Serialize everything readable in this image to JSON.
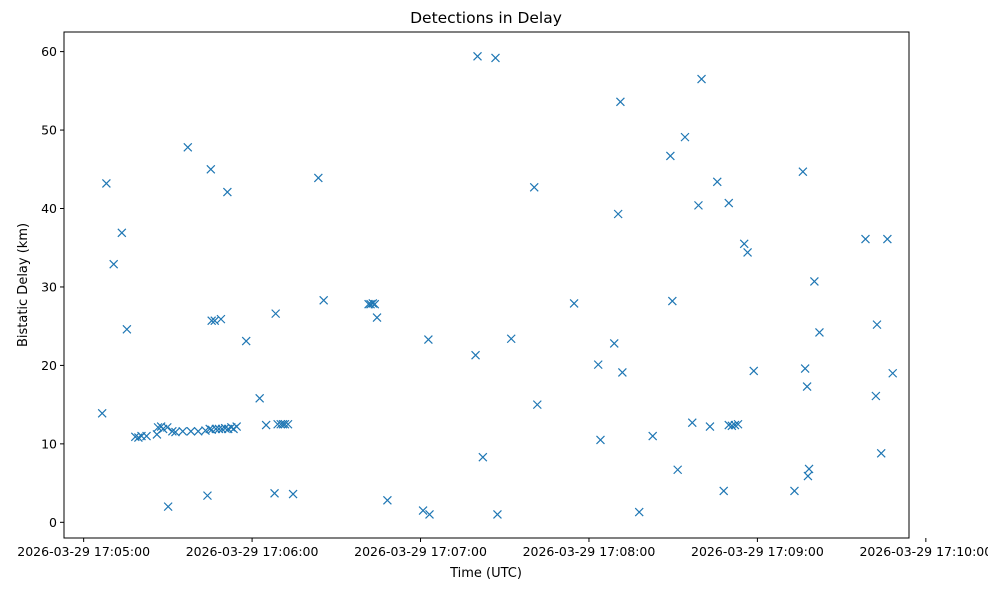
{
  "chart_data": {
    "type": "scatter",
    "title": "Detections in Delay",
    "xlabel": "Time (UTC)",
    "ylabel": "Bistatic Delay (km)",
    "marker": "x",
    "color": "#1f77b4",
    "grid": false,
    "x_unit": "seconds since 2026-03-29 17:05:00 UTC",
    "xlim": [
      -7,
      294
    ],
    "ylim": [
      -2,
      62.5
    ],
    "x_ticks": [
      {
        "value": 0,
        "label": "2026-03-29 17:05:00"
      },
      {
        "value": 60,
        "label": "2026-03-29 17:06:00"
      },
      {
        "value": 120,
        "label": "2026-03-29 17:07:00"
      },
      {
        "value": 180,
        "label": "2026-03-29 17:08:00"
      },
      {
        "value": 240,
        "label": "2026-03-29 17:09:00"
      },
      {
        "value": 300,
        "label": "2026-03-29 17:10:00"
      }
    ],
    "y_ticks": [
      {
        "value": 0,
        "label": "0"
      },
      {
        "value": 10,
        "label": "10"
      },
      {
        "value": 20,
        "label": "20"
      },
      {
        "value": 30,
        "label": "30"
      },
      {
        "value": 40,
        "label": "40"
      },
      {
        "value": 50,
        "label": "50"
      },
      {
        "value": 60,
        "label": "60"
      }
    ],
    "points": [
      {
        "x": 6.6,
        "y": 13.9
      },
      {
        "x": 8.1,
        "y": 43.2
      },
      {
        "x": 10.7,
        "y": 32.9
      },
      {
        "x": 13.6,
        "y": 36.9
      },
      {
        "x": 15.4,
        "y": 24.6
      },
      {
        "x": 18.4,
        "y": 10.9
      },
      {
        "x": 19.5,
        "y": 10.8
      },
      {
        "x": 20.6,
        "y": 11.0
      },
      {
        "x": 22.4,
        "y": 11.0
      },
      {
        "x": 26.1,
        "y": 11.2
      },
      {
        "x": 26.5,
        "y": 12.1
      },
      {
        "x": 27.6,
        "y": 12.2
      },
      {
        "x": 28.3,
        "y": 11.9
      },
      {
        "x": 29.8,
        "y": 12.1
      },
      {
        "x": 30.1,
        "y": 2.0
      },
      {
        "x": 31.6,
        "y": 11.6
      },
      {
        "x": 32.7,
        "y": 11.5
      },
      {
        "x": 35.3,
        "y": 11.6
      },
      {
        "x": 37.1,
        "y": 47.8
      },
      {
        "x": 38.2,
        "y": 11.6
      },
      {
        "x": 40.8,
        "y": 11.6
      },
      {
        "x": 43.4,
        "y": 11.7
      },
      {
        "x": 44.1,
        "y": 3.4
      },
      {
        "x": 44.9,
        "y": 11.9
      },
      {
        "x": 45.3,
        "y": 45.0
      },
      {
        "x": 45.6,
        "y": 25.7
      },
      {
        "x": 45.6,
        "y": 11.8
      },
      {
        "x": 46.7,
        "y": 25.7
      },
      {
        "x": 47.1,
        "y": 11.9
      },
      {
        "x": 48.2,
        "y": 11.9
      },
      {
        "x": 48.9,
        "y": 25.9
      },
      {
        "x": 49.3,
        "y": 11.9
      },
      {
        "x": 50.4,
        "y": 12.0
      },
      {
        "x": 51.2,
        "y": 42.1
      },
      {
        "x": 51.5,
        "y": 11.9
      },
      {
        "x": 52.6,
        "y": 12.1
      },
      {
        "x": 53.4,
        "y": 11.9
      },
      {
        "x": 54.5,
        "y": 12.2
      },
      {
        "x": 57.9,
        "y": 23.1
      },
      {
        "x": 62.7,
        "y": 15.8
      },
      {
        "x": 65.0,
        "y": 12.4
      },
      {
        "x": 68.0,
        "y": 3.7
      },
      {
        "x": 68.4,
        "y": 26.6
      },
      {
        "x": 69.1,
        "y": 12.5
      },
      {
        "x": 70.2,
        "y": 12.5
      },
      {
        "x": 71.0,
        "y": 12.5
      },
      {
        "x": 71.7,
        "y": 12.5
      },
      {
        "x": 72.8,
        "y": 12.5
      },
      {
        "x": 74.6,
        "y": 3.6
      },
      {
        "x": 83.6,
        "y": 43.9
      },
      {
        "x": 85.5,
        "y": 28.3
      },
      {
        "x": 101.5,
        "y": 27.8
      },
      {
        "x": 102.2,
        "y": 27.8
      },
      {
        "x": 103.0,
        "y": 27.9
      },
      {
        "x": 103.7,
        "y": 27.8
      },
      {
        "x": 104.5,
        "y": 26.1
      },
      {
        "x": 108.2,
        "y": 2.8
      },
      {
        "x": 120.9,
        "y": 1.5
      },
      {
        "x": 122.8,
        "y": 23.3
      },
      {
        "x": 123.2,
        "y": 1.0
      },
      {
        "x": 139.6,
        "y": 21.3
      },
      {
        "x": 140.3,
        "y": 59.4
      },
      {
        "x": 142.2,
        "y": 8.3
      },
      {
        "x": 146.7,
        "y": 59.2
      },
      {
        "x": 147.4,
        "y": 1.0
      },
      {
        "x": 152.3,
        "y": 23.4
      },
      {
        "x": 160.5,
        "y": 42.7
      },
      {
        "x": 161.6,
        "y": 15.0
      },
      {
        "x": 174.7,
        "y": 27.9
      },
      {
        "x": 183.3,
        "y": 20.1
      },
      {
        "x": 184.1,
        "y": 10.5
      },
      {
        "x": 189.0,
        "y": 22.8
      },
      {
        "x": 190.4,
        "y": 39.3
      },
      {
        "x": 191.2,
        "y": 53.6
      },
      {
        "x": 191.9,
        "y": 19.1
      },
      {
        "x": 197.9,
        "y": 1.3
      },
      {
        "x": 202.7,
        "y": 11.0
      },
      {
        "x": 209.0,
        "y": 46.7
      },
      {
        "x": 209.7,
        "y": 28.2
      },
      {
        "x": 211.6,
        "y": 6.7
      },
      {
        "x": 214.2,
        "y": 49.1
      },
      {
        "x": 216.8,
        "y": 12.7
      },
      {
        "x": 219.0,
        "y": 40.4
      },
      {
        "x": 220.1,
        "y": 56.5
      },
      {
        "x": 223.1,
        "y": 12.2
      },
      {
        "x": 225.7,
        "y": 43.4
      },
      {
        "x": 228.0,
        "y": 4.0
      },
      {
        "x": 229.8,
        "y": 40.7
      },
      {
        "x": 229.8,
        "y": 12.4
      },
      {
        "x": 230.9,
        "y": 12.3
      },
      {
        "x": 232.0,
        "y": 12.4
      },
      {
        "x": 233.1,
        "y": 12.5
      },
      {
        "x": 235.3,
        "y": 35.5
      },
      {
        "x": 236.5,
        "y": 34.4
      },
      {
        "x": 238.7,
        "y": 19.3
      },
      {
        "x": 253.2,
        "y": 4.0
      },
      {
        "x": 256.2,
        "y": 44.7
      },
      {
        "x": 257.0,
        "y": 19.6
      },
      {
        "x": 257.7,
        "y": 17.3
      },
      {
        "x": 258.0,
        "y": 5.9
      },
      {
        "x": 258.4,
        "y": 6.8
      },
      {
        "x": 260.3,
        "y": 30.7
      },
      {
        "x": 262.1,
        "y": 24.2
      },
      {
        "x": 278.5,
        "y": 36.1
      },
      {
        "x": 282.2,
        "y": 16.1
      },
      {
        "x": 282.6,
        "y": 25.2
      },
      {
        "x": 284.1,
        "y": 8.8
      },
      {
        "x": 286.3,
        "y": 36.1
      },
      {
        "x": 288.2,
        "y": 19.0
      }
    ]
  }
}
